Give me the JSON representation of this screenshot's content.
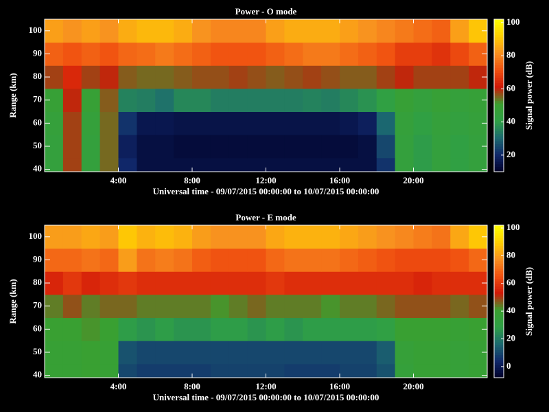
{
  "chart_data": [
    {
      "type": "heatmap",
      "title": "Power - O mode",
      "xlabel": "Universal time - 09/07/2015 00:00:00 to 10/07/2015 00:00:00",
      "ylabel": "Range (km)",
      "colorbar_label": "Signal power (dB)",
      "xbins": [
        0,
        1,
        2,
        3,
        4,
        5,
        6,
        7,
        8,
        9,
        10,
        11,
        12,
        13,
        14,
        15,
        16,
        17,
        18,
        19,
        20,
        21,
        22,
        23,
        24
      ],
      "ybins": [
        35,
        45,
        55,
        65,
        75,
        85,
        95,
        105
      ],
      "xlim": [
        0,
        24
      ],
      "ylim": [
        39,
        105
      ],
      "xticks": [
        {
          "value": 4,
          "label": "4:00"
        },
        {
          "value": 8,
          "label": "8:00"
        },
        {
          "value": 12,
          "label": "12:00"
        },
        {
          "value": 16,
          "label": "16:00"
        },
        {
          "value": 20,
          "label": "20:00"
        }
      ],
      "yticks": [
        40,
        50,
        60,
        70,
        80,
        90,
        100
      ],
      "zlim": [
        10,
        102
      ],
      "zticks": [
        20,
        40,
        60,
        80,
        100
      ],
      "colorscale": [
        "#000028",
        "#10286a",
        "#1c6a70",
        "#2fa046",
        "#3aa030",
        "#d01808",
        "#f05010",
        "#f89020",
        "#ffd000",
        "#ffff00"
      ],
      "z": [
        [
          45,
          58,
          45,
          55,
          20,
          14,
          14,
          14,
          14,
          14,
          14,
          14,
          14,
          14,
          14,
          14,
          14,
          14,
          22,
          45,
          40,
          45,
          42,
          45
        ],
        [
          45,
          58,
          45,
          55,
          18,
          14,
          14,
          13,
          13,
          13,
          13,
          13,
          13,
          13,
          13,
          13,
          13,
          14,
          25,
          45,
          40,
          45,
          42,
          45
        ],
        [
          46,
          58,
          46,
          55,
          22,
          16,
          16,
          15,
          15,
          15,
          15,
          15,
          15,
          15,
          15,
          15,
          16,
          18,
          30,
          46,
          42,
          46,
          44,
          46
        ],
        [
          48,
          60,
          48,
          56,
          35,
          34,
          32,
          36,
          36,
          34,
          34,
          34,
          34,
          34,
          35,
          34,
          36,
          38,
          42,
          48,
          45,
          48,
          46,
          47
        ],
        [
          58,
          64,
          58,
          60,
          56,
          55,
          55,
          56,
          57,
          57,
          58,
          57,
          56,
          57,
          58,
          57,
          56,
          56,
          58,
          60,
          58,
          58,
          58,
          60
        ],
        [
          74,
          72,
          74,
          72,
          75,
          76,
          78,
          76,
          74,
          72,
          72,
          72,
          74,
          76,
          78,
          78,
          76,
          74,
          72,
          68,
          68,
          66,
          70,
          74
        ],
        [
          84,
          82,
          84,
          82,
          86,
          88,
          88,
          86,
          82,
          80,
          80,
          80,
          84,
          86,
          86,
          86,
          84,
          82,
          80,
          78,
          76,
          74,
          84,
          90
        ]
      ]
    },
    {
      "type": "heatmap",
      "title": "Power - E mode",
      "xlabel": "Universal time - 09/07/2015 00:00:00 to 10/07/2015 00:00:00",
      "ylabel": "Range (km)",
      "colorbar_label": "Signal power (dB)",
      "xbins": [
        0,
        1,
        2,
        3,
        4,
        5,
        6,
        7,
        8,
        9,
        10,
        11,
        12,
        13,
        14,
        15,
        16,
        17,
        18,
        19,
        20,
        21,
        22,
        23,
        24
      ],
      "ybins": [
        35,
        45,
        55,
        65,
        75,
        85,
        95,
        105
      ],
      "xlim": [
        0,
        24
      ],
      "ylim": [
        39,
        105
      ],
      "xticks": [
        {
          "value": 4,
          "label": "4:00"
        },
        {
          "value": 8,
          "label": "8:00"
        },
        {
          "value": 12,
          "label": "12:00"
        },
        {
          "value": 16,
          "label": "16:00"
        },
        {
          "value": 20,
          "label": "20:00"
        }
      ],
      "yticks": [
        40,
        50,
        60,
        70,
        80,
        90,
        100
      ],
      "zlim": [
        -8,
        102
      ],
      "zticks": [
        0,
        20,
        40,
        60,
        80,
        100
      ],
      "colorscale": [
        "#000028",
        "#10286a",
        "#1c6a70",
        "#2fa046",
        "#3aa030",
        "#d01808",
        "#f05010",
        "#f89020",
        "#ffd000",
        "#ffff00"
      ],
      "z": [
        [
          38,
          38,
          40,
          38,
          10,
          8,
          8,
          8,
          8,
          9,
          9,
          9,
          9,
          8,
          8,
          8,
          9,
          9,
          12,
          35,
          38,
          38,
          36,
          38
        ],
        [
          38,
          38,
          40,
          38,
          12,
          10,
          10,
          10,
          10,
          10,
          10,
          10,
          10,
          10,
          10,
          10,
          10,
          10,
          14,
          36,
          38,
          38,
          36,
          38
        ],
        [
          40,
          40,
          42,
          40,
          28,
          26,
          28,
          26,
          26,
          28,
          28,
          26,
          28,
          26,
          28,
          28,
          28,
          28,
          30,
          40,
          40,
          40,
          38,
          40
        ],
        [
          44,
          48,
          44,
          46,
          46,
          44,
          44,
          44,
          44,
          42,
          44,
          46,
          44,
          44,
          44,
          42,
          44,
          44,
          46,
          48,
          48,
          48,
          46,
          48
        ],
        [
          56,
          60,
          56,
          58,
          60,
          58,
          58,
          58,
          58,
          58,
          58,
          58,
          60,
          58,
          58,
          58,
          58,
          58,
          58,
          58,
          56,
          58,
          58,
          58
        ],
        [
          70,
          70,
          72,
          70,
          80,
          72,
          74,
          72,
          68,
          66,
          66,
          66,
          70,
          72,
          72,
          72,
          70,
          68,
          66,
          64,
          64,
          64,
          66,
          70
        ],
        [
          80,
          80,
          82,
          80,
          88,
          84,
          86,
          84,
          80,
          78,
          78,
          78,
          82,
          84,
          84,
          84,
          82,
          80,
          78,
          76,
          74,
          72,
          82,
          88
        ]
      ]
    }
  ]
}
